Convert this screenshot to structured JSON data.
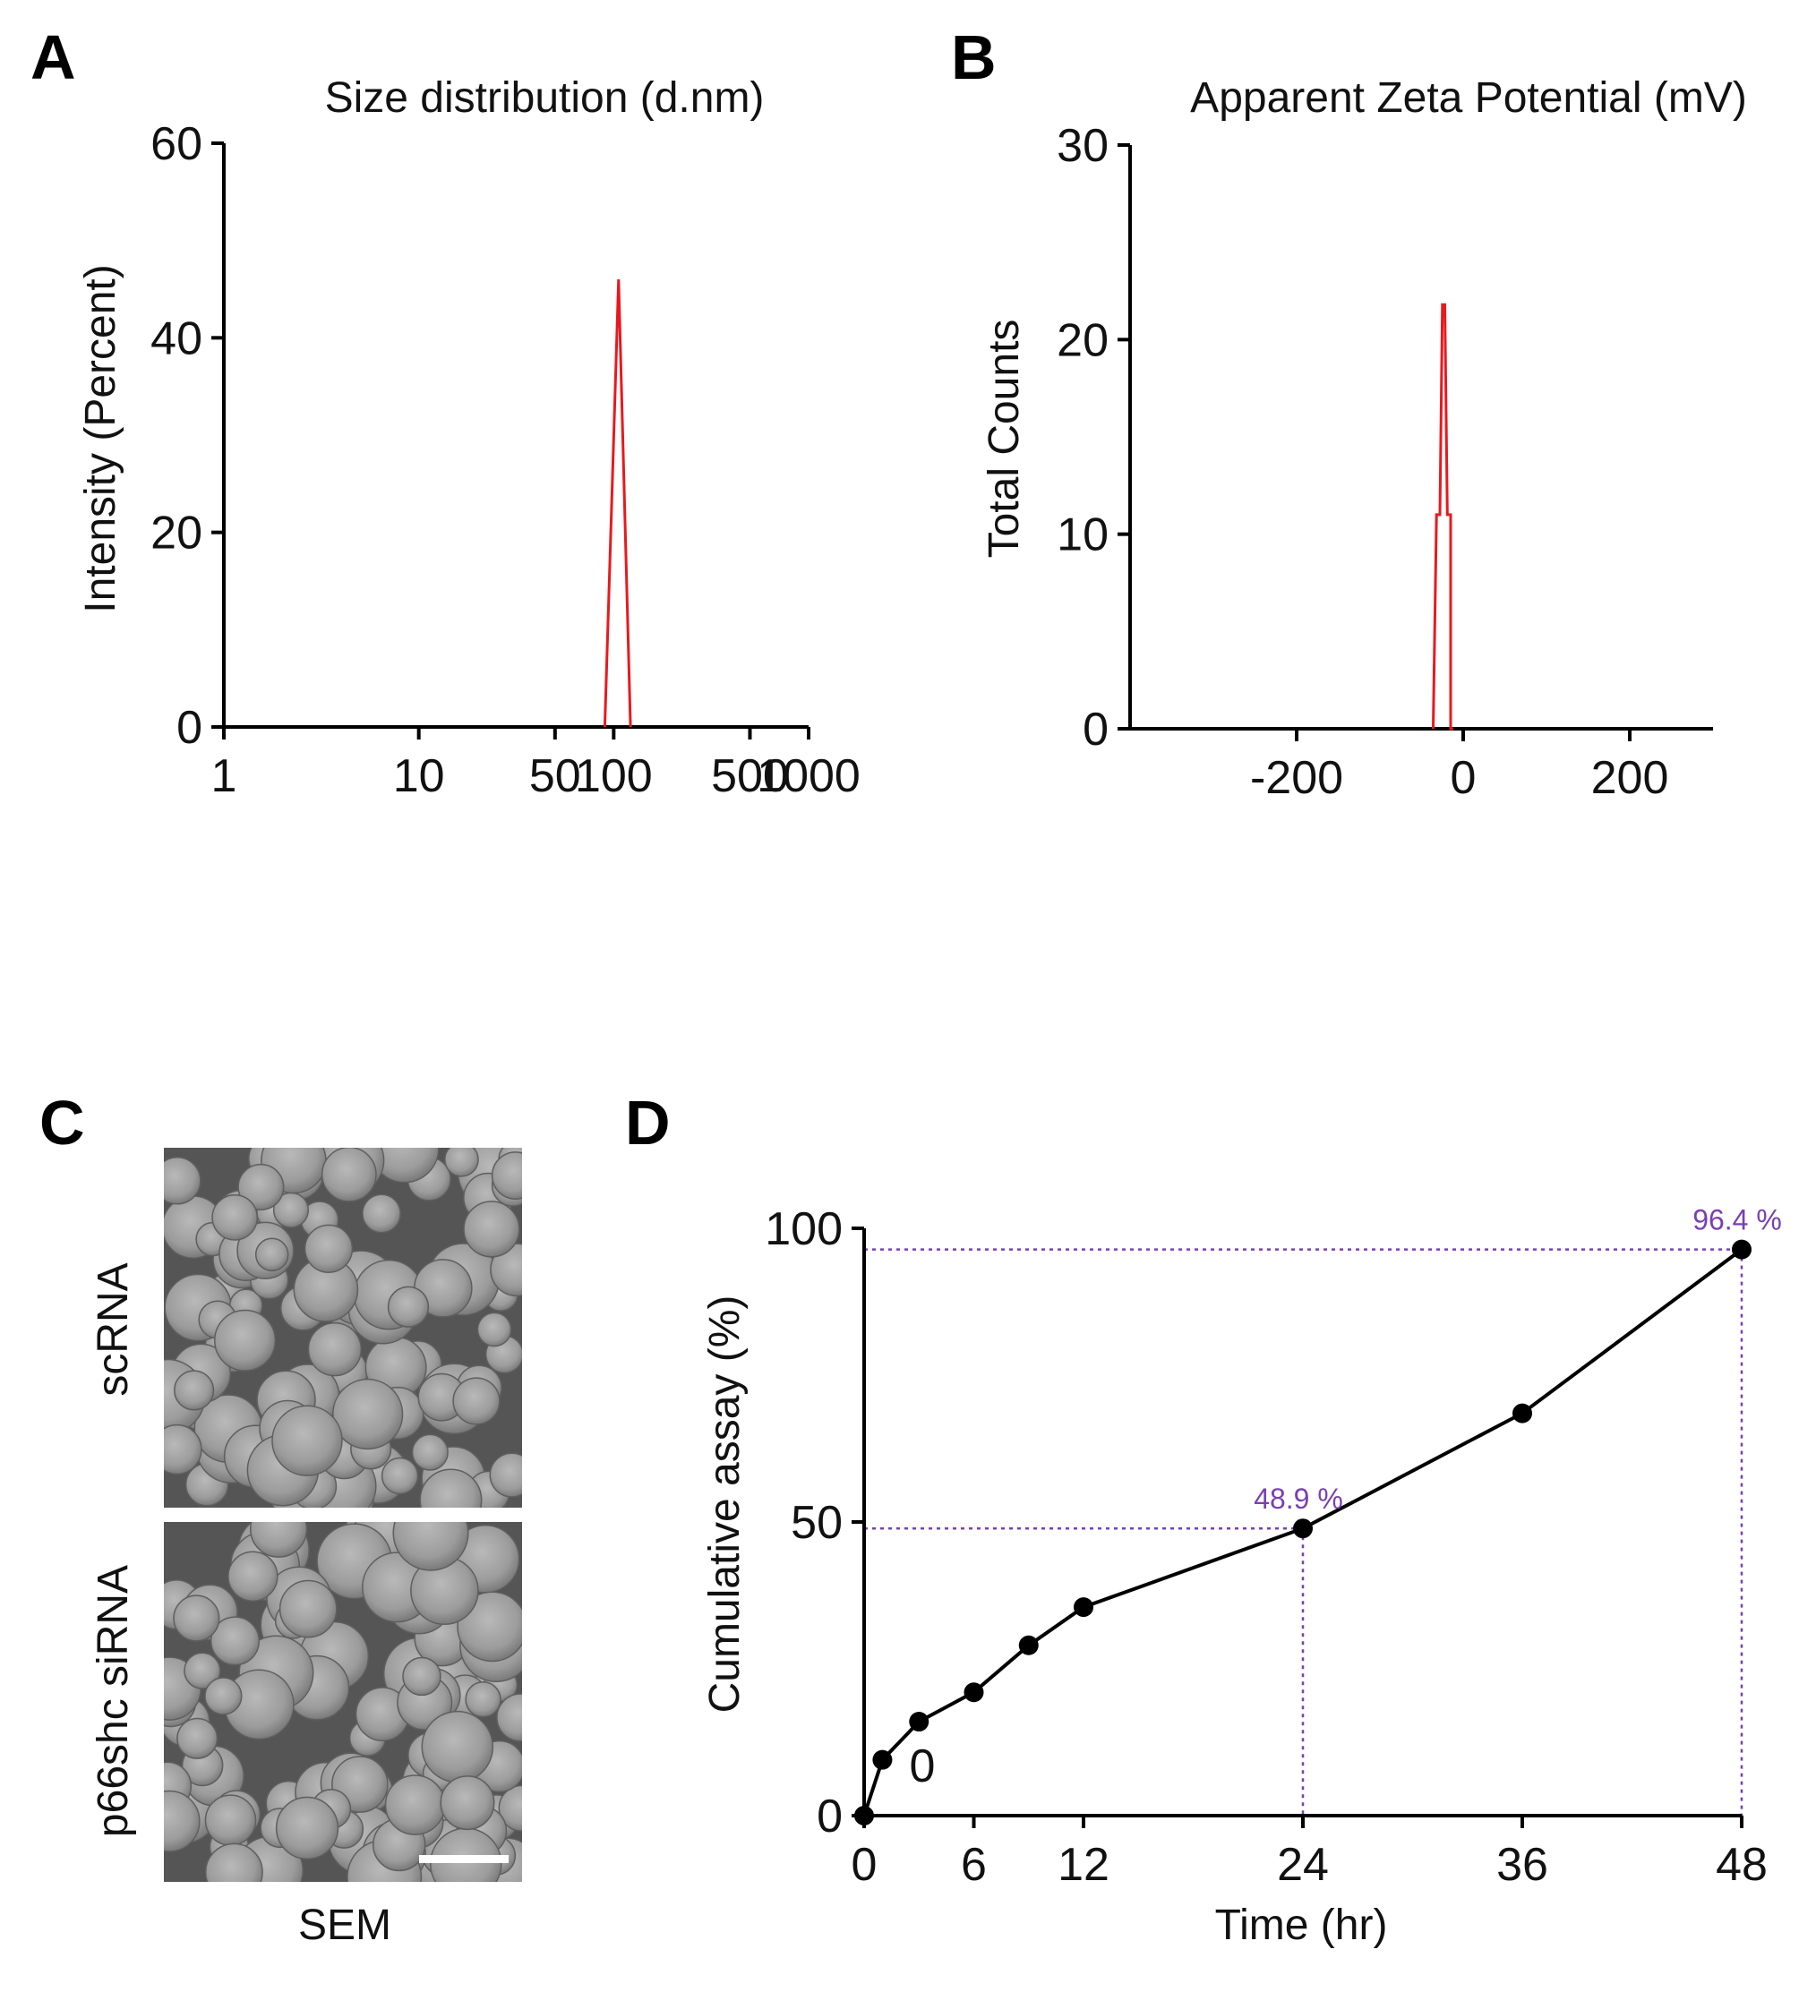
{
  "chart_data": [
    {
      "panel": "A",
      "type": "line",
      "title": "Size distribution (d.nm)",
      "xlabel": "",
      "ylabel": "Intensity (Percent)",
      "xscale": "log",
      "xlim": [
        1,
        1000
      ],
      "ylim": [
        0,
        60
      ],
      "xticks": [
        1,
        10,
        50,
        100,
        500,
        1000
      ],
      "xtick_labels": [
        "1",
        "10",
        "50",
        "100",
        "500",
        "1000"
      ],
      "yticks": [
        0,
        20,
        40,
        60
      ],
      "ytick_labels": [
        "0",
        "20",
        "40",
        "60"
      ],
      "series": [
        {
          "name": "size",
          "color": "#e8191e",
          "x": [
            90,
            106,
            122
          ],
          "y": [
            0,
            46,
            0
          ]
        }
      ]
    },
    {
      "panel": "B",
      "type": "line",
      "title": "Apparent Zeta Potential (mV)",
      "xlabel": "",
      "ylabel": "Total Counts",
      "xlim": [
        -400,
        300
      ],
      "ylim": [
        0,
        30
      ],
      "xticks": [
        -200,
        0,
        200
      ],
      "xtick_labels": [
        "-200",
        "0",
        "200"
      ],
      "yticks": [
        0,
        10,
        20,
        30
      ],
      "ytick_labels": [
        "0",
        "10",
        "20",
        "30"
      ],
      "series": [
        {
          "name": "zeta",
          "color": "#e8191e",
          "x": [
            -36,
            -32,
            -28,
            -25,
            -22,
            -19,
            -15,
            -15,
            -12
          ],
          "y": [
            0,
            11,
            11,
            21.8,
            21.8,
            11,
            11,
            0,
            0
          ]
        }
      ]
    },
    {
      "panel": "D",
      "type": "line",
      "title": "",
      "xlabel": "Time (hr)",
      "ylabel": "Cumulative assay (%)",
      "xlim": [
        0,
        48
      ],
      "ylim": [
        0,
        100
      ],
      "xticks": [
        0,
        6,
        12,
        24,
        36,
        48
      ],
      "xtick_labels": [
        "0",
        "6",
        "12",
        "24",
        "36",
        "48"
      ],
      "yticks": [
        0,
        50,
        100
      ],
      "ytick_labels": [
        "0",
        "50",
        "100"
      ],
      "series": [
        {
          "name": "release",
          "color": "#000000",
          "x": [
            0,
            1,
            3,
            6,
            9,
            12,
            24,
            36,
            48
          ],
          "y": [
            0,
            9.5,
            16,
            21,
            29,
            35.5,
            48.9,
            68.5,
            96.4
          ]
        }
      ],
      "annotations": [
        {
          "x": 24,
          "y": 48.9,
          "text": "48.9 %"
        },
        {
          "x": 48,
          "y": 96.4,
          "text": "96.4 %"
        }
      ],
      "extra_label": "0"
    }
  ],
  "panels": {
    "A": "A",
    "B": "B",
    "C": "C",
    "D": "D"
  },
  "sem": {
    "top_label": "scRNA",
    "bottom_label": "p66shc siRNA",
    "caption": "SEM"
  }
}
